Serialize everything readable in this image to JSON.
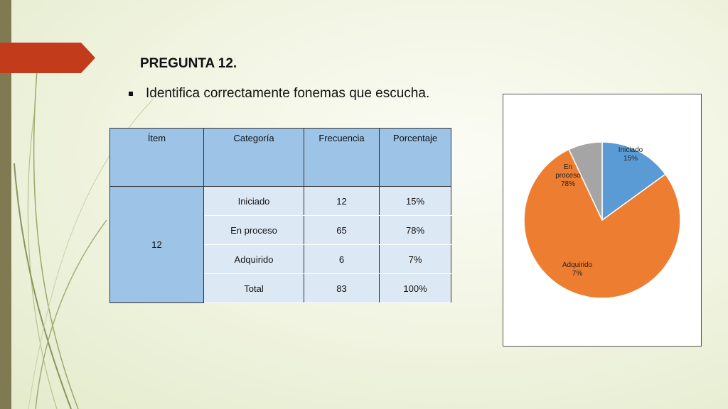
{
  "slide": {
    "title": "PREGUNTA 12.",
    "bullet": "Identifica correctamente fonemas que escucha."
  },
  "table": {
    "headers": [
      "Ítem",
      "Categoría",
      "Frecuencia",
      "Porcentaje"
    ],
    "item": "12",
    "rows": [
      {
        "categoria": "Iniciado",
        "frecuencia": "12",
        "porcentaje": "15%"
      },
      {
        "categoria": "En proceso",
        "frecuencia": "65",
        "porcentaje": "78%"
      },
      {
        "categoria": "Adquirido",
        "frecuencia": "6",
        "porcentaje": "7%"
      },
      {
        "categoria": "Total",
        "frecuencia": "83",
        "porcentaje": "100%"
      }
    ]
  },
  "colors": {
    "accent_tab": "#c23b1a",
    "table_header": "#9dc3e6",
    "table_body": "#dde8f5"
  },
  "chart_data": {
    "type": "pie",
    "slices": [
      {
        "label": "Iniciado",
        "pct_label": "15%",
        "value": 15,
        "color": "#5b9bd5"
      },
      {
        "label": "En proceso",
        "pct_label": "78%",
        "value": 78,
        "color": "#ed7d31"
      },
      {
        "label": "Adquirido",
        "pct_label": "7%",
        "value": 7,
        "color": "#a5a5a5"
      }
    ]
  }
}
